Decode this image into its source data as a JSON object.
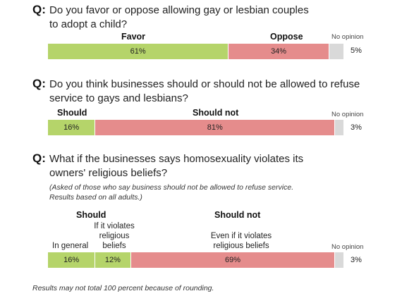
{
  "colors": {
    "favor": "#b5d46a",
    "oppose": "#e58c8c",
    "no_opinion": "#d9d9d9"
  },
  "chart_data": [
    {
      "type": "bar",
      "title": "Do you favor or oppose allowing gay or lesbian couples to adopt a child?",
      "title_lines": [
        "Do you favor or oppose allowing gay or lesbian couples",
        "to adopt a child?"
      ],
      "labels": {
        "favor": "Favor",
        "oppose": "Oppose",
        "no_opinion": "No opinion"
      },
      "segments": [
        {
          "label": "Favor",
          "value": 61,
          "display": "61%",
          "color_key": "favor"
        },
        {
          "label": "Oppose",
          "value": 34,
          "display": "34%",
          "color_key": "oppose"
        },
        {
          "label": "No opinion",
          "value": 5,
          "display": "5%",
          "color_key": "no_opinion"
        }
      ]
    },
    {
      "type": "bar",
      "title": "Do you think businesses should or should not be allowed to refuse service to gays and lesbians?",
      "title_lines": [
        "Do you think businesses should or should not be allowed to refuse",
        "service to gays and lesbians?"
      ],
      "labels": {
        "should": "Should",
        "should_not": "Should not",
        "no_opinion": "No opinion"
      },
      "segments": [
        {
          "label": "Should",
          "value": 16,
          "display": "16%",
          "color_key": "favor"
        },
        {
          "label": "Should not",
          "value": 81,
          "display": "81%",
          "color_key": "oppose"
        },
        {
          "label": "No opinion",
          "value": 3,
          "display": "3%",
          "color_key": "no_opinion"
        }
      ]
    },
    {
      "type": "bar",
      "title": "What if the businesses says homosexuality violates its owners' religious beliefs?",
      "title_lines": [
        "What if the businesses says homosexuality violates its",
        "owners' religious beliefs?"
      ],
      "subtitle_lines": [
        "(Asked of those who say business should not be allowed to refuse service.",
        "Results based on all adults.)"
      ],
      "labels": {
        "should": "Should",
        "should_not": "Should not",
        "in_general": "In general",
        "if_violates": [
          "If it violates",
          "religious",
          "beliefs"
        ],
        "even_if": [
          "Even if it violates",
          "religious beliefs"
        ],
        "no_opinion": "No opinion"
      },
      "segments": [
        {
          "label": "In general",
          "value": 16,
          "display": "16%",
          "color_key": "favor"
        },
        {
          "label": "If it violates religious beliefs",
          "value": 12,
          "display": "12%",
          "color_key": "favor"
        },
        {
          "label": "Even if it violates religious beliefs",
          "value": 69,
          "display": "69%",
          "color_key": "oppose"
        },
        {
          "label": "No opinion",
          "value": 3,
          "display": "3%",
          "color_key": "no_opinion"
        }
      ]
    }
  ],
  "q_marker": "Q:",
  "footnote": "Results may not total 100 percent because of rounding."
}
